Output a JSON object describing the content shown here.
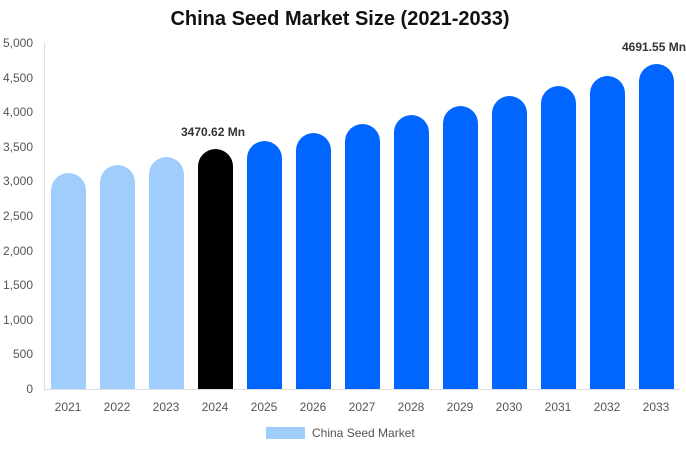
{
  "chart_data": {
    "type": "bar",
    "title": "China Seed Market Size (2021-2033)",
    "xlabel": "",
    "ylabel": "",
    "ylim": [
      0,
      5000
    ],
    "yticks": [
      "0",
      "500",
      "1,000",
      "1,500",
      "2,000",
      "2,500",
      "3,000",
      "3,500",
      "4,000",
      "4,500",
      "5,000"
    ],
    "categories": [
      "2021",
      "2022",
      "2023",
      "2024",
      "2025",
      "2026",
      "2027",
      "2028",
      "2029",
      "2030",
      "2031",
      "2032",
      "2033"
    ],
    "series": [
      {
        "name": "China Seed Market",
        "values": [
          3121,
          3237,
          3353,
          3470.62,
          3584,
          3700,
          3830,
          3960,
          4090,
          4234,
          4380,
          4523,
          4691.55
        ]
      }
    ],
    "bar_colors": [
      "#a0cdfc",
      "#a0cdfc",
      "#a0cdfc",
      "#000000",
      "#0066ff",
      "#0066ff",
      "#0066ff",
      "#0066ff",
      "#0066ff",
      "#0066ff",
      "#0066ff",
      "#0066ff",
      "#0066ff"
    ],
    "annotations": [
      {
        "index": 3,
        "text": "3470.62 Mn"
      },
      {
        "index": 12,
        "text": "4691.55 Mn"
      }
    ],
    "grid": false,
    "legend_position": "bottom",
    "legend": [
      {
        "label": "China Seed Market",
        "color": "#a0cdfc"
      }
    ]
  }
}
